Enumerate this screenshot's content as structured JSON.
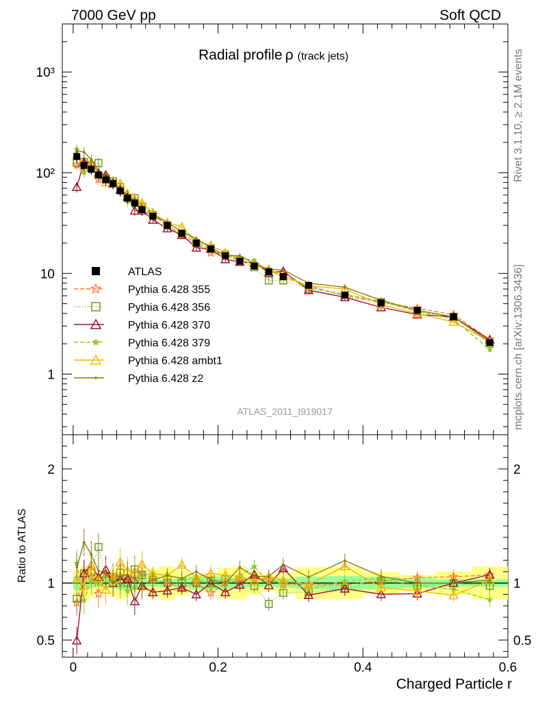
{
  "header": {
    "left": "7000 GeV pp",
    "right": "Soft QCD"
  },
  "side_text": {
    "rivet": "Rivet 3.1.10, ≥ 2.1M events",
    "mcplots": "mcplots.cern.ch [arXiv:1306.3436]"
  },
  "chart_data": {
    "type": "line",
    "title": "Radial profile",
    "title_symbol": "ρ",
    "title_suffix": "(track jets)",
    "watermark": "ATLAS_2011_I919017",
    "xlabel": "Charged Particle r",
    "ylabel_ratio": "Ratio to ATLAS",
    "xlim": [
      -0.015,
      0.6
    ],
    "ylim_main": [
      0.25,
      3000
    ],
    "yscale_main": "log",
    "ylim_ratio": [
      0.35,
      2.3
    ],
    "ratio_ticks": [
      "0.5",
      "1",
      "2"
    ],
    "x_tick_labels": [
      "0",
      "0.2",
      "0.4",
      "0.6"
    ],
    "y_tick_labels_main": [
      "1",
      "10",
      "10²",
      "10³"
    ],
    "legend_position": "bottom-left",
    "x": [
      0.005,
      0.015,
      0.025,
      0.035,
      0.045,
      0.055,
      0.065,
      0.075,
      0.085,
      0.095,
      0.11,
      0.13,
      0.15,
      0.17,
      0.19,
      0.21,
      0.23,
      0.25,
      0.27,
      0.29,
      0.325,
      0.375,
      0.425,
      0.475,
      0.525,
      0.575
    ],
    "series": [
      {
        "name": "ATLAS",
        "color": "#000000",
        "marker": "square-filled",
        "dash": "none",
        "values": [
          145,
          118,
          108,
          95,
          85,
          78,
          66,
          56,
          50,
          43,
          37,
          30,
          25,
          20,
          17.5,
          15,
          13.2,
          11.8,
          10.4,
          9.3,
          7.6,
          6.1,
          5.1,
          4.3,
          3.7,
          2.05
        ]
      },
      {
        "name": "Pythia 6.428 355",
        "color": "#ff7733",
        "marker": "star-open",
        "dash": "6,3",
        "values": [
          120,
          125,
          115,
          86,
          92,
          82,
          70,
          58,
          52,
          47,
          38,
          30,
          24,
          20,
          16,
          15,
          13.5,
          12.3,
          10.7,
          9.2,
          7.5,
          6.0,
          5.2,
          4.5,
          3.9,
          2.2
        ]
      },
      {
        "name": "Pythia 6.428 356",
        "color": "#6f9a1a",
        "marker": "square-open",
        "dash": "1,3",
        "values": [
          125,
          128,
          118,
          125,
          87,
          82,
          72,
          56,
          56,
          46,
          38,
          30,
          25,
          20,
          17.8,
          15.5,
          13.5,
          11.5,
          8.5,
          8.5,
          7.0,
          5.8,
          5.2,
          4.2,
          3.7,
          2.0
        ]
      },
      {
        "name": "Pythia 6.428 370",
        "color": "#a01030",
        "marker": "triangle-open",
        "dash": "none",
        "values": [
          72,
          128,
          125,
          100,
          95,
          78,
          68,
          58,
          42,
          42,
          34,
          28,
          24,
          18,
          17.5,
          13.8,
          13.0,
          12.7,
          10.2,
          10.5,
          6.8,
          5.8,
          4.6,
          3.9,
          3.7,
          2.2
        ]
      },
      {
        "name": "Pythia 6.428 379",
        "color": "#88cc22",
        "marker": "star-filled",
        "dash": "6,3",
        "values": [
          170,
          100,
          110,
          95,
          90,
          80,
          65,
          52,
          48,
          46,
          40,
          32,
          26,
          21,
          17,
          15,
          14,
          13.5,
          10.5,
          9.5,
          7.2,
          6.2,
          5.3,
          4.2,
          3.5,
          1.75
        ]
      },
      {
        "name": "Pythia 6.428 ambt1",
        "color": "#f5b500",
        "marker": "triangle-open",
        "dash": "none",
        "values": [
          150,
          115,
          125,
          98,
          80,
          80,
          78,
          62,
          55,
          50,
          40,
          32,
          29,
          21,
          19,
          16,
          14,
          12,
          11,
          9.5,
          7.5,
          7.0,
          4.9,
          4.0,
          3.3,
          2.1
        ]
      },
      {
        "name": "Pythia 6.428 z2",
        "color": "#8a7a10",
        "marker": "dot",
        "dash": "none",
        "values": [
          165,
          160,
          135,
          105,
          92,
          78,
          70,
          60,
          52,
          42,
          38,
          32,
          26,
          22,
          18,
          15,
          15,
          12.5,
          11.0,
          10.8,
          8.0,
          7.3,
          5.4,
          4.3,
          3.7,
          2.1
        ]
      }
    ]
  }
}
